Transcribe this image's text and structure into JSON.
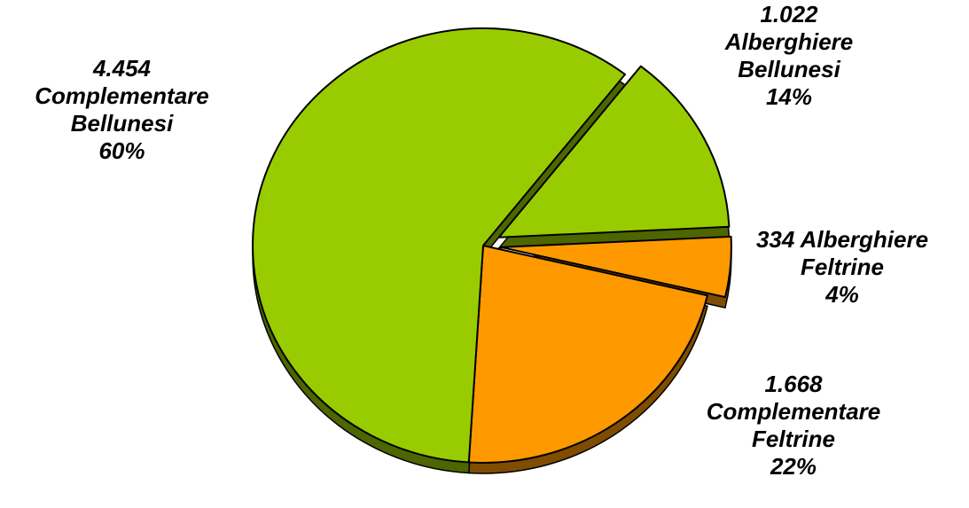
{
  "chart_data": {
    "type": "pie",
    "title": "",
    "slices": [
      {
        "value_label": "4.454",
        "category": "Complementare Bellunesi",
        "percent_label": "60%",
        "value": 4454,
        "color": "#99cc00",
        "exploded": false
      },
      {
        "value_label": "1.022",
        "category": "Alberghiere Bellunesi",
        "percent_label": "14%",
        "value": 1022,
        "color": "#99cc00",
        "exploded": true
      },
      {
        "value_label": "334",
        "category": "Alberghiere Feltrine",
        "percent_label": "4%",
        "value": 334,
        "color": "#ff9900",
        "exploded": true
      },
      {
        "value_label": "1.668",
        "category": "Complementare Feltrine",
        "percent_label": "22%",
        "value": 1668,
        "color": "#ff9900",
        "exploded": false
      }
    ],
    "labels": {
      "s0_line1": "4.454",
      "s0_line2": "Complementare",
      "s0_line3": "Bellunesi",
      "s0_line4": "60%",
      "s1_line1": "1.022",
      "s1_line2": "Alberghiere",
      "s1_line3": "Bellunesi",
      "s1_line4": "14%",
      "s2_line1": "334 Alberghiere",
      "s2_line2": "Feltrine",
      "s2_line3": "4%",
      "s3_line1": "1.668",
      "s3_line2": "Complementare",
      "s3_line3": "Feltrine",
      "s3_line4": "22%"
    }
  }
}
